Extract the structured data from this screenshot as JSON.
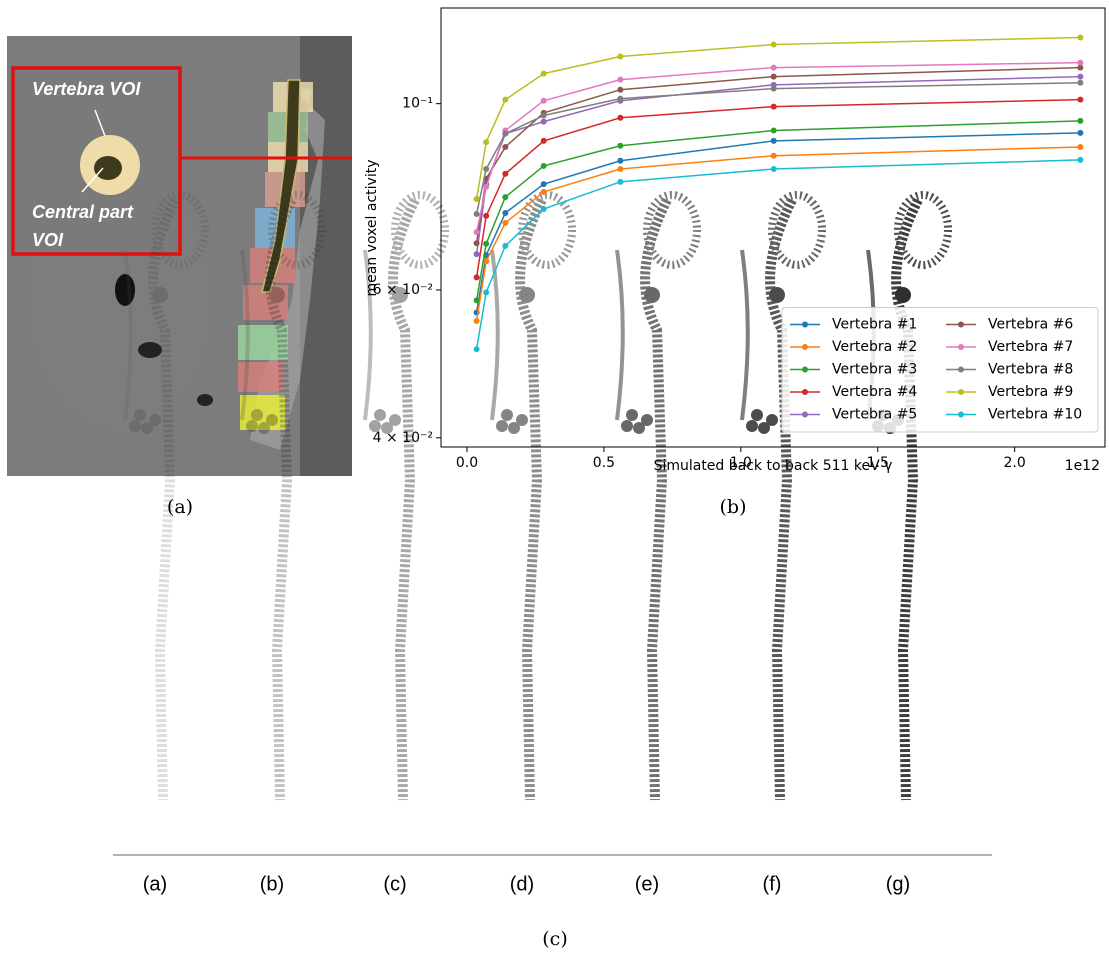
{
  "panels": {
    "a": {
      "caption": "(a)",
      "annotations": [
        "Vertebra VOI",
        "Central part",
        "VOI"
      ]
    },
    "b": {
      "caption": "(b)"
    },
    "c": {
      "caption": "(c)",
      "image_labels": [
        "(a)",
        "(b)",
        "(c)",
        "(d)",
        "(e)",
        "(f)",
        "(g)"
      ]
    }
  },
  "chart_data": {
    "type": "line",
    "x_label": "Simulated back to back 511 keV γ",
    "x_offset_label": "1e12",
    "y_label": "mean voxel activity",
    "y_scale": "log",
    "legend": "lower right",
    "x": [
      0.035,
      0.07,
      0.14,
      0.28,
      0.56,
      1.12,
      2.24
    ],
    "xlim": [
      -0.095,
      2.33
    ],
    "xticks": [
      {
        "value": 0,
        "label": "0.0"
      },
      {
        "value": 0.5,
        "label": "0.5"
      },
      {
        "value": 1,
        "label": "1.0"
      },
      {
        "value": 1.5,
        "label": "1.5"
      },
      {
        "value": 2,
        "label": "2.0"
      }
    ],
    "ylim": [
      0.039,
      0.13
    ],
    "yticks": [
      {
        "value": 0.04,
        "label": "4 × 10⁻²"
      },
      {
        "value": 0.06,
        "label": "6 × 10⁻²"
      },
      {
        "value": 0.1,
        "label": "10⁻¹"
      }
    ],
    "series": [
      {
        "name": "Vertebra #1",
        "color": "#1f77b4",
        "values": [
          0.0564,
          0.066,
          0.0741,
          0.0802,
          0.0855,
          0.0903,
          0.0923
        ]
      },
      {
        "name": "Vertebra #2",
        "color": "#ff7f0e",
        "values": [
          0.0551,
          0.0649,
          0.0721,
          0.0785,
          0.0836,
          0.0867,
          0.0888
        ]
      },
      {
        "name": "Vertebra #3",
        "color": "#2ca02c",
        "values": [
          0.0583,
          0.0681,
          0.0774,
          0.0843,
          0.0891,
          0.0929,
          0.0954
        ]
      },
      {
        "name": "Vertebra #4",
        "color": "#d62728",
        "values": [
          0.0621,
          0.0735,
          0.0825,
          0.0903,
          0.0962,
          0.0992,
          0.1011
        ]
      },
      {
        "name": "Vertebra #5",
        "color": "#9467bd",
        "values": [
          0.0662,
          0.0802,
          0.0921,
          0.0952,
          0.1008,
          0.1053,
          0.1077
        ]
      },
      {
        "name": "Vertebra #6",
        "color": "#8c564b",
        "values": [
          0.0682,
          0.0814,
          0.0888,
          0.0975,
          0.1039,
          0.1077,
          0.1104
        ]
      },
      {
        "name": "Vertebra #7",
        "color": "#e377c2",
        "values": [
          0.0703,
          0.0796,
          0.0929,
          0.1008,
          0.1068,
          0.1104,
          0.1119
        ]
      },
      {
        "name": "Vertebra #8",
        "color": "#7f7f7f",
        "values": [
          0.0739,
          0.0836,
          0.0921,
          0.0968,
          0.1014,
          0.1042,
          0.1059
        ]
      },
      {
        "name": "Vertebra #9",
        "color": "#bcbd22",
        "values": [
          0.077,
          0.09,
          0.1011,
          0.1086,
          0.1138,
          0.1176,
          0.1199
        ]
      },
      {
        "name": "Vertebra #10",
        "color": "#17becf",
        "values": [
          0.051,
          0.0596,
          0.0677,
          0.0749,
          0.0807,
          0.0836,
          0.0857
        ]
      }
    ]
  }
}
